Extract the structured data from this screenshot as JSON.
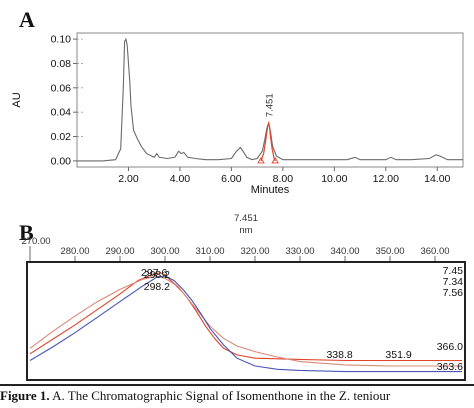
{
  "caption": {
    "label": "Figure 1.",
    "text": "A. The Chromatographic Signal of Isomenthone in the Z. teniour"
  },
  "chart_data": [
    {
      "panel": "A",
      "type": "line",
      "xlabel": "Minutes",
      "ylabel": "AU",
      "xlim": [
        0.0,
        15.0
      ],
      "ylim": [
        -0.005,
        0.105
      ],
      "xticks": [
        2.0,
        4.0,
        6.0,
        8.0,
        10.0,
        12.0,
        14.0
      ],
      "xtick_labels": [
        "2.00",
        "4.00",
        "6.00",
        "8.00",
        "10.00",
        "12.00",
        "14.00"
      ],
      "yticks": [
        0.0,
        0.02,
        0.04,
        0.06,
        0.08,
        0.1
      ],
      "ytick_labels": [
        "0.00",
        "0.02",
        "0.04",
        "0.06",
        "0.08",
        "0.10"
      ],
      "peak_label": "7.451",
      "peak_x": 7.451,
      "series": [
        {
          "color": "#6a6a6a",
          "x": [
            0.0,
            0.5,
            1.0,
            1.5,
            1.7,
            1.8,
            1.85,
            1.9,
            1.95,
            2.0,
            2.05,
            2.1,
            2.2,
            2.35,
            2.5,
            2.7,
            3.0,
            3.1,
            3.2,
            3.5,
            3.8,
            3.95,
            4.05,
            4.15,
            4.3,
            4.6,
            5.0,
            5.5,
            6.0,
            6.2,
            6.35,
            6.45,
            6.6,
            6.8,
            7.0,
            7.2,
            7.3,
            7.38,
            7.451,
            7.52,
            7.6,
            7.75,
            8.0,
            8.5,
            9.0,
            10.0,
            10.5,
            10.8,
            11.0,
            11.5,
            12.0,
            12.2,
            12.4,
            13.0,
            13.7,
            13.95,
            14.1,
            14.4,
            15.0
          ],
          "y": [
            0.0,
            0.0,
            0.0,
            0.001,
            0.01,
            0.06,
            0.098,
            0.1,
            0.095,
            0.08,
            0.065,
            0.045,
            0.025,
            0.018,
            0.012,
            0.006,
            0.003,
            0.006,
            0.003,
            0.002,
            0.003,
            0.008,
            0.006,
            0.007,
            0.003,
            0.002,
            0.001,
            0.001,
            0.002,
            0.008,
            0.011,
            0.008,
            0.003,
            0.001,
            0.002,
            0.008,
            0.018,
            0.027,
            0.031,
            0.024,
            0.012,
            0.004,
            0.001,
            0.001,
            0.001,
            0.001,
            0.001,
            0.003,
            0.001,
            0.001,
            0.001,
            0.003,
            0.001,
            0.001,
            0.002,
            0.005,
            0.004,
            0.001,
            0.001
          ]
        },
        {
          "color": "#e0452c",
          "x": [
            7.15,
            7.25,
            7.32,
            7.38,
            7.42,
            7.451,
            7.48,
            7.52,
            7.58,
            7.65,
            7.7
          ],
          "y": [
            0.0,
            0.006,
            0.015,
            0.024,
            0.029,
            0.031,
            0.028,
            0.02,
            0.01,
            0.003,
            0.0
          ]
        }
      ]
    },
    {
      "panel": "B",
      "type": "line",
      "xlabel": "nm",
      "title": "7.451",
      "xlim": [
        270.0,
        366.0
      ],
      "ylim": [
        0.0,
        1.0
      ],
      "xticks": [
        270,
        280,
        290,
        300,
        310,
        320,
        330,
        340,
        350,
        360
      ],
      "xtick_labels": [
        "270.00",
        "280.00",
        "290.00",
        "300.00",
        "310.00",
        "320.00",
        "330.00",
        "340.00",
        "350.00",
        "360.00"
      ],
      "series": [
        {
          "color": "#e0452c",
          "x": [
            270,
            275,
            280,
            285,
            290,
            294,
            297.6,
            299,
            300,
            301,
            303,
            305,
            307,
            309,
            311,
            313,
            316,
            320,
            330,
            340,
            350,
            360,
            366
          ],
          "y": [
            0.2,
            0.33,
            0.46,
            0.6,
            0.74,
            0.86,
            0.92,
            0.93,
            0.91,
            0.87,
            0.8,
            0.7,
            0.58,
            0.45,
            0.34,
            0.25,
            0.19,
            0.16,
            0.15,
            0.14,
            0.14,
            0.14,
            0.14
          ]
        },
        {
          "color": "#d98a78",
          "x": [
            270,
            275,
            280,
            285,
            290,
            295,
            298.2,
            300,
            302,
            304,
            307,
            310,
            313,
            316,
            320,
            325,
            330,
            340,
            350,
            360,
            366
          ],
          "y": [
            0.25,
            0.4,
            0.54,
            0.67,
            0.78,
            0.87,
            0.9,
            0.88,
            0.83,
            0.75,
            0.6,
            0.45,
            0.34,
            0.27,
            0.22,
            0.17,
            0.13,
            0.1,
            0.09,
            0.09,
            0.09
          ]
        },
        {
          "color": "#4a55b8",
          "x": [
            270,
            275,
            280,
            285,
            290,
            295,
            298.2,
            300,
            302,
            304,
            306,
            308,
            310,
            313,
            316,
            320,
            325,
            330,
            340,
            350,
            360,
            366
          ],
          "y": [
            0.14,
            0.26,
            0.39,
            0.53,
            0.67,
            0.81,
            0.89,
            0.9,
            0.86,
            0.78,
            0.68,
            0.56,
            0.43,
            0.28,
            0.16,
            0.09,
            0.06,
            0.05,
            0.04,
            0.04,
            0.04,
            0.04
          ]
        }
      ],
      "annotations": [
        {
          "text": "297.6",
          "x": 297.6,
          "y": 0.93,
          "color": "#e0452c"
        },
        {
          "text": "298.2",
          "x": 298.2,
          "y": 0.91,
          "color": "#4a55b8"
        },
        {
          "text": "298.2",
          "x": 298.2,
          "y": 0.8,
          "color": "#e0452c"
        },
        {
          "text": "338.8",
          "x": 338.8,
          "y": 0.19,
          "color": "#e0452c"
        },
        {
          "text": "351.9",
          "x": 351.9,
          "y": 0.19,
          "color": "#e0452c"
        },
        {
          "text": "366.0",
          "x": 366.0,
          "y": 0.26,
          "color": "#e0452c"
        },
        {
          "text": "363.6",
          "x": 366.0,
          "y": 0.08,
          "color": "#4a55b8"
        }
      ],
      "right_labels": [
        {
          "text": "7.45",
          "color": "#4a55b8"
        },
        {
          "text": "7.34",
          "color": "#e0452c"
        },
        {
          "text": "7.56",
          "color": "#e0452c"
        }
      ]
    }
  ]
}
